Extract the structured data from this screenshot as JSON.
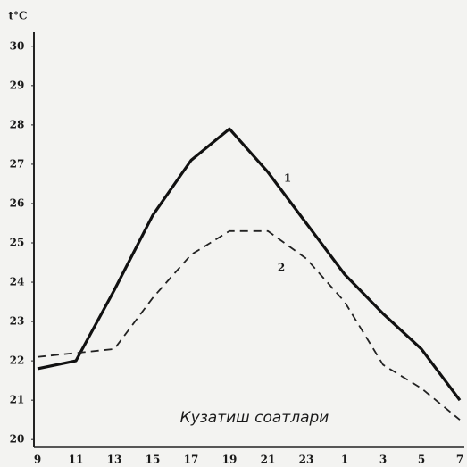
{
  "chart_data": {
    "type": "line",
    "y_label": "t°C",
    "annotation": "Кузатиш соатлари",
    "categories": [
      "9",
      "11",
      "13",
      "15",
      "17",
      "19",
      "21",
      "23",
      "1",
      "3",
      "5",
      "7"
    ],
    "series": [
      {
        "name": "1",
        "color": "#111111",
        "style": "solid",
        "values": [
          21.8,
          22.0,
          23.8,
          25.7,
          27.1,
          27.9,
          26.8,
          25.5,
          24.2,
          23.2,
          22.3,
          21.0
        ]
      },
      {
        "name": "2",
        "color": "#222222",
        "style": "dashed",
        "values": [
          22.1,
          22.2,
          22.3,
          23.6,
          24.7,
          25.3,
          25.3,
          24.6,
          23.5,
          21.9,
          21.3,
          20.5
        ]
      }
    ],
    "ylim": [
      19.8,
      30.2
    ],
    "yticks": [
      20,
      21,
      22,
      23,
      24,
      25,
      26,
      27,
      28,
      29,
      30
    ],
    "grid": false
  }
}
